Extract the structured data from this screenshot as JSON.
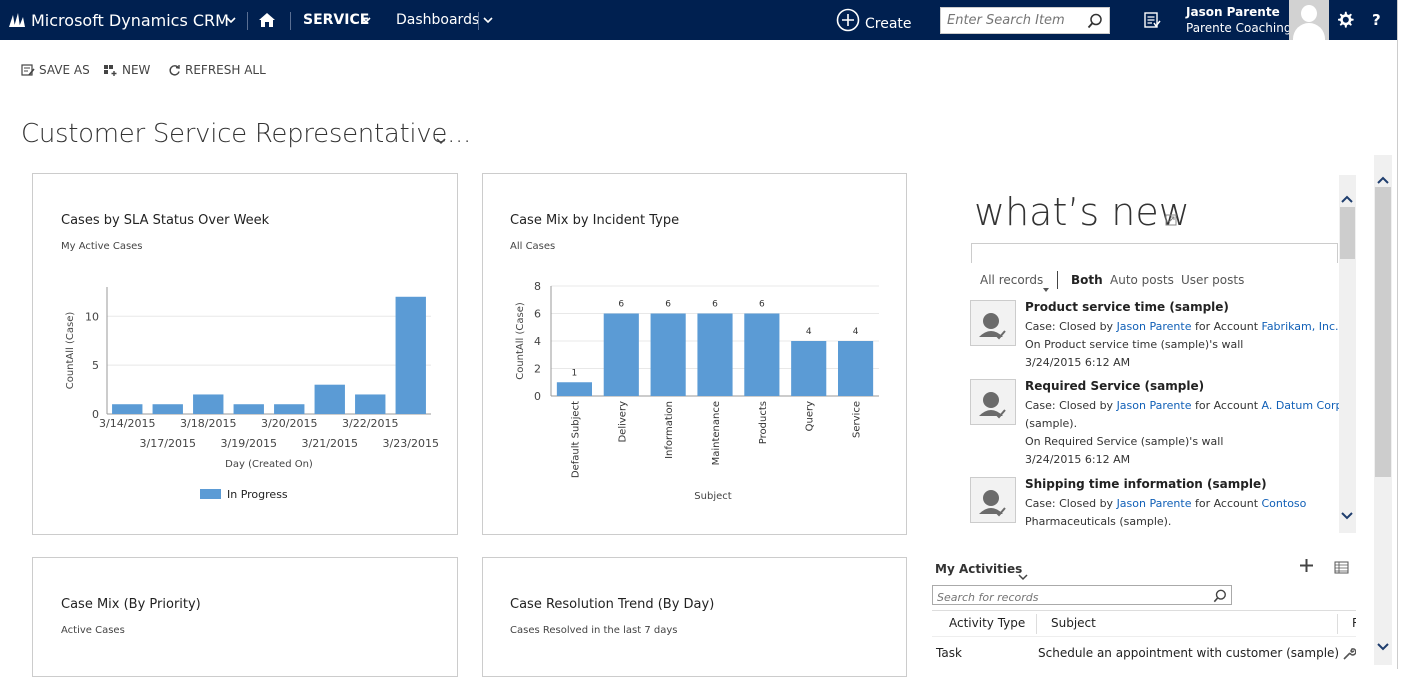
{
  "nav": {
    "app_title": "Microsoft Dynamics CRM",
    "area": "SERVICE",
    "subarea": "Dashboards",
    "create_label": "Create",
    "search_placeholder": "Enter Search Item",
    "user_name": "Jason Parente",
    "user_org": "Parente Coaching"
  },
  "commands": {
    "save_as": "SAVE AS",
    "new": "NEW",
    "refresh_all": "REFRESH ALL"
  },
  "dashboard": {
    "title": "Customer Service Representative..."
  },
  "panels": {
    "sla": {
      "title": "Cases by SLA Status Over Week",
      "subtitle": "My Active Cases"
    },
    "mix": {
      "title": "Case Mix by Incident Type",
      "subtitle": "All Cases"
    },
    "priority": {
      "title": "Case Mix (By Priority)",
      "subtitle": "Active Cases"
    },
    "resolution": {
      "title": "Case Resolution Trend (By Day)",
      "subtitle": "Cases Resolved in the last 7 days"
    }
  },
  "chart_data": [
    {
      "type": "bar",
      "title": "Cases by SLA Status Over Week",
      "subtitle": "My Active Cases",
      "categories": [
        "3/14/2015",
        "3/17/2015",
        "3/18/2015",
        "3/19/2015",
        "3/20/2015",
        "3/21/2015",
        "3/22/2015",
        "3/23/2015"
      ],
      "series": [
        {
          "name": "In Progress",
          "values": [
            1,
            1,
            2,
            1,
            1,
            3,
            2,
            12
          ]
        }
      ],
      "xlabel": "Day (Created On)",
      "ylabel": "CountAll (Case)",
      "ylim": [
        0,
        13
      ],
      "yticks": [
        "0",
        "5",
        "10"
      ],
      "grid": true,
      "legend": "bottom",
      "color": "#5b9bd5"
    },
    {
      "type": "bar",
      "title": "Case Mix by Incident Type",
      "subtitle": "All Cases",
      "categories": [
        "Default Subject",
        "Delivery",
        "Information",
        "Maintenance",
        "Products",
        "Query",
        "Service"
      ],
      "values": [
        1,
        6,
        6,
        6,
        6,
        4,
        4
      ],
      "data_labels": [
        "1",
        "6",
        "6",
        "6",
        "6",
        "4",
        "4"
      ],
      "xlabel": "Subject",
      "ylabel": "CountAll (Case)",
      "ylim": [
        0,
        8
      ],
      "yticks": [
        "0",
        "2",
        "4",
        "6",
        "8"
      ],
      "grid": true,
      "color": "#5b9bd5"
    }
  ],
  "whats_new": {
    "title": "what’s new",
    "filters": {
      "all_records": "All records",
      "both": "Both",
      "auto_posts": "Auto posts",
      "user_posts": "User posts"
    },
    "posts": [
      {
        "title": "Product service time (sample)",
        "case_prefix": "Case: Closed by ",
        "user": "Jason Parente",
        "for_account": " for Account ",
        "account": "Fabrikam, Inc. (sa",
        "account2": "",
        "wall": "On Product service time (sample)'s wall",
        "time": "3/24/2015 6:12 AM"
      },
      {
        "title": "Required Service (sample)",
        "case_prefix": "Case: Closed by ",
        "user": "Jason Parente",
        "for_account": " for Account ",
        "account": "A. Datum Corpo",
        "account2": "(sample).",
        "wall": "On Required Service (sample)'s wall",
        "time": "3/24/2015 6:12 AM"
      },
      {
        "title": "Shipping time information (sample)",
        "case_prefix": "Case: Closed by ",
        "user": "Jason Parente",
        "for_account": " for Account ",
        "account": "Contoso",
        "account2": "Pharmaceuticals (sample).",
        "wall": "",
        "time": ""
      }
    ]
  },
  "activities": {
    "title": "My Activities",
    "search_placeholder": "Search for records",
    "columns": [
      "Activity Type",
      "Subject",
      "R"
    ],
    "rows": [
      {
        "type": "Task",
        "subject": "Schedule an appointment with customer (sample)"
      }
    ]
  },
  "colors": {
    "nav_bg": "#002050",
    "bar": "#5b9bd5",
    "link": "#1160b7"
  },
  "icons": [
    "dynamics-logo-icon",
    "chevron-down-icon",
    "home-icon",
    "plus-circle-icon",
    "search-icon",
    "recent-items-icon",
    "avatar-icon",
    "gear-icon",
    "help-icon",
    "save-as-icon",
    "new-icon",
    "refresh-icon",
    "expand-icon",
    "chevron-up-icon",
    "user-post-icon",
    "plus-icon",
    "list-view-icon",
    "wrench-icon"
  ]
}
